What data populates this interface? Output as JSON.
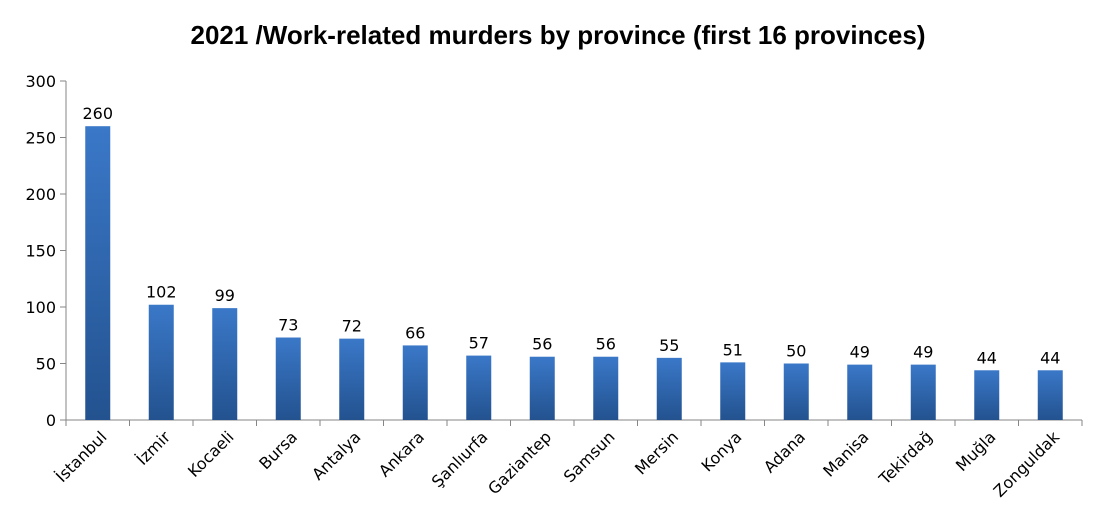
{
  "chart_data": {
    "type": "bar",
    "title": "2021 /Work-related murders by province (first 16 provinces)",
    "categories": [
      "İstanbul",
      "İzmir",
      "Kocaeli",
      "Bursa",
      "Antalya",
      "Ankara",
      "Şanlıurfa",
      "Gaziantep",
      "Samsun",
      "Mersin",
      "Konya",
      "Adana",
      "Manisa",
      "Tekirdağ",
      "Muğla",
      "Zonguldak"
    ],
    "values": [
      260,
      102,
      99,
      73,
      72,
      66,
      57,
      56,
      56,
      55,
      51,
      50,
      49,
      49,
      44,
      44
    ],
    "ylim": [
      0,
      300
    ],
    "yticks": [
      "0",
      "50",
      "100",
      "150",
      "200",
      "250",
      "300"
    ],
    "grid": false,
    "data_labels": true,
    "bar_color": "#3a78c8",
    "bar_color_dark": "#23528f"
  }
}
